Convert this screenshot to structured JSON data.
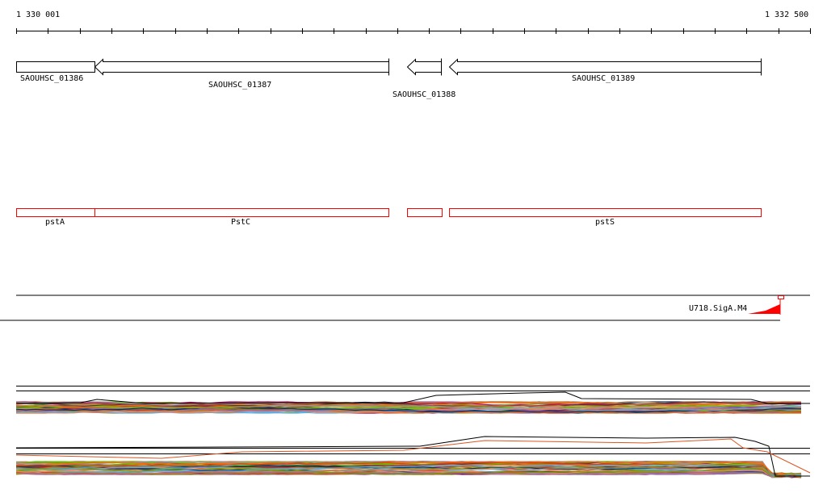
{
  "ruler": {
    "start_label": "1 330 001",
    "end_label": "1 332 500",
    "ticks": 25
  },
  "genes": [
    {
      "id": "SAOUHSC_01386",
      "strand": "box"
    },
    {
      "id": "SAOUHSC_01387",
      "strand": "-"
    },
    {
      "id": "SAOUHSC_01388",
      "strand": "-"
    },
    {
      "id": "SAOUHSC_01389",
      "strand": "-"
    }
  ],
  "annotations": [
    {
      "label": "pstA"
    },
    {
      "label": "PstC"
    },
    {
      "label": ""
    },
    {
      "label": "pstS"
    }
  ],
  "track": {
    "label": "U718.SigA.M4",
    "color": "#ff0000"
  },
  "colors": {
    "annotation": "#ff0000",
    "gene_outline": "#000000"
  }
}
